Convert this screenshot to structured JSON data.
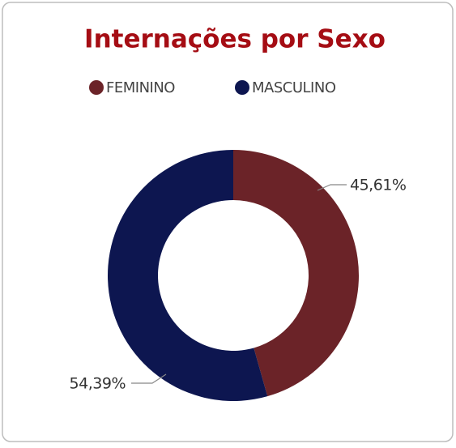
{
  "chart_data": {
    "type": "donut",
    "title": "Internações por Sexo",
    "categories": [
      "FEMININO",
      "MASCULINO"
    ],
    "values": [
      45.61,
      54.39
    ],
    "value_labels": [
      "45,61%",
      "54,39%"
    ],
    "colors": [
      "#6b2328",
      "#0d1650"
    ],
    "legend": "top"
  }
}
